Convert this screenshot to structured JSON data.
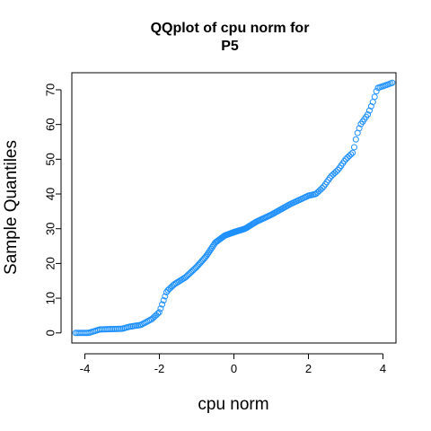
{
  "chart_data": {
    "type": "scatter",
    "title_line1": "QQplot of cpu norm for",
    "title_line2": "P5",
    "xlabel": "cpu norm",
    "ylabel": "Sample Quantiles",
    "xlim": [
      -4.35,
      4.35
    ],
    "ylim": [
      -2.9,
      74.9
    ],
    "x_ticks": [
      "-4",
      "-2",
      "0",
      "2",
      "4"
    ],
    "y_ticks": [
      "0",
      "10",
      "20",
      "30",
      "40",
      "50",
      "60",
      "70"
    ],
    "grid": false,
    "point_color": "#1e90ff",
    "knots": [
      [
        -4.25,
        0
      ],
      [
        -3.9,
        0
      ],
      [
        -3.75,
        0.5
      ],
      [
        -3.6,
        1
      ],
      [
        -3.0,
        1.2
      ],
      [
        -2.8,
        1.8
      ],
      [
        -2.5,
        2.3
      ],
      [
        -2.2,
        4
      ],
      [
        -2.0,
        6
      ],
      [
        -1.9,
        9
      ],
      [
        -1.8,
        12
      ],
      [
        -1.6,
        14
      ],
      [
        -1.3,
        16
      ],
      [
        -1.0,
        19
      ],
      [
        -0.75,
        22
      ],
      [
        -0.5,
        26
      ],
      [
        -0.25,
        28
      ],
      [
        0.0,
        29
      ],
      [
        0.3,
        30
      ],
      [
        0.6,
        32
      ],
      [
        1.0,
        34
      ],
      [
        1.5,
        37
      ],
      [
        2.0,
        39.5
      ],
      [
        2.2,
        40
      ],
      [
        2.4,
        42
      ],
      [
        2.6,
        45
      ],
      [
        2.8,
        47
      ],
      [
        3.0,
        50
      ],
      [
        3.2,
        52
      ],
      [
        3.3,
        57
      ],
      [
        3.4,
        60
      ],
      [
        3.6,
        63
      ],
      [
        3.75,
        67
      ],
      [
        3.85,
        70.5
      ],
      [
        4.0,
        71
      ],
      [
        4.25,
        72
      ]
    ],
    "n_points": 240
  }
}
